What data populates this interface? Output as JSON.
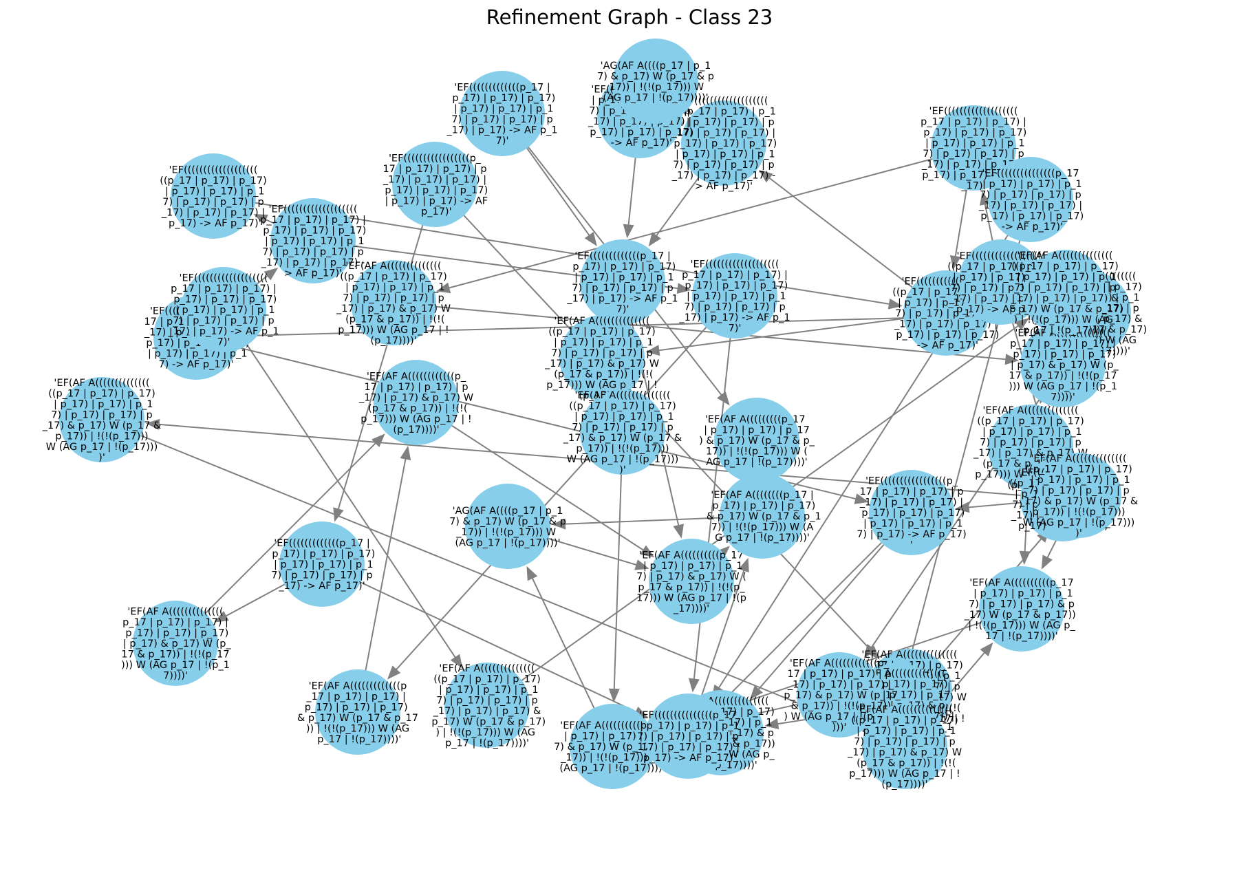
{
  "title": "Refinement Graph - Class 23",
  "nodes": [
    {
      "id": "n1",
      "label": "'EF(((((((((((((((((((((((p_17 | p_17) | p_17) | p_17) | p_17) | p_17) | p_17) | p_17) | p_17) | p_17) | p_17) | p_17) | p_17) | p_17) | p_17) | p_17) | p_17) | p_17) | p_17) -> AF p_17)'"
    },
    {
      "id": "n2",
      "label": "'EF(((((((((((((p_17 | p_17) | p_17) | p_17) | p_17) | p_17) | p_17) | p_17) | p_17) | p_17) | p_17) -> AF p_17)'"
    },
    {
      "id": "n3",
      "label": "'EF(((((((((((((((p_17 | p_17) | p_17) | p_17) | p_17) | p_17) | p_17) | p_17) | p_17) | p_17) | p_17) | p_17) -> AF p_17)'"
    },
    {
      "id": "n4",
      "label": "'EF(AF A((((((((((((((((p_17 | p_17) | p_17) | p_17) | p_17) | p_17) | p_17) | p_17) | p_17) | p_17) & p_17) W (p_17 & p_17)) | !(!(p_17))) W (AG p_17 | !(p_17))))'"
    },
    {
      "id": "n5",
      "label": "'AG(AF A((((p_17 | p_17) & p_17) W (p_17 & p_17)) | !(!(p_17))) W (AG p_17 | !(p_17))))'"
    },
    {
      "id": "n6",
      "label": "'EF(((((((((((((p_17 | p_17) | p_17) | p_17) | p_17) | p_17) | p_17) | p_17) | p_17) | p_17) | p_17) -> AF p_17)'"
    },
    {
      "id": "n7",
      "label": "'EF(AF A((((((((((((((((p_17 | p_17) | p_17) | p_17) | p_17) | p_17) | p_17) | p_17) | p_17) & p_17) W (p_17 & p_17)) | !(!(p_17))) W (AG p_17 | !(p_17))))'"
    },
    {
      "id": "n8",
      "label": "'EF(AF A((((((((((p_17 | p_17) | p_17) | p_17) | p_17) & p_17) W (p_17 & p_17)) | !(!(p_17))) W (AG p_17 | !(p_17))))'"
    },
    {
      "id": "n9",
      "label": "'EF(((((((((((((((((((p_17 | p_17) | p_17) | p_17) | p_17) | p_17) | p_17) | p_17) | p_17) | p_17) | p_17) | p_17) | p_17) | p_17) | p_17) | p_17) -> AF p_17)'"
    },
    {
      "id": "n10",
      "label": "'EF(((((((((((((((p_17 | p_17) | p_17) | p_17) | p_17) | p_17) | p_17) | p_17) | p_17) | p_17) | p_17) | p_17) -> AF p_17)'"
    },
    {
      "id": "n11",
      "label": "'EF(AF A((((((((((p_17 | p_17) | p_17) | p_17) & p_17) W (p_17 & p_17)) | !(!(p_17))) W (AG p_17 | !(p_17))))'"
    },
    {
      "id": "n12",
      "label": "'EF(AF A((((((((((((((((p_17 | p_17) | p_17) | p_17) | p_17) | p_17) | p_17) | p_17) | p_17) | p_17) | p_17) & p_17) W (p_17 & p_17)) | !(!(p_17))) W (AG p_17 | !(p_17))))'"
    },
    {
      "id": "n13",
      "label": "'EF(AF A((((((((((((((((p_17 | p_17) | p_17) | p_17) | p_17) | p_17) | p_17) | p_17) & p_17) W (p_17 & p_17)) | !(!(p_17))) W (AG p_17 | !(p_17))))'"
    },
    {
      "id": "n14",
      "label": "'EF(((((((((((((((((((((p_17 | p_17) | p_17) | p_17) | p_17) | p_17) | p_17) | p_17) | p_17) | p_17) | p_17) | p_17) | p_17) | p_17) -> AF p_17)'"
    },
    {
      "id": "n15",
      "label": "'EF(((((((((((((((((p_17 | p_17) | p_17) | p_17) | p_17) | p_17) | p_17) | p_17) | p_17) | p_17) | p_17) | p_17) | p_17) -> AF p_17)'"
    },
    {
      "id": "n16",
      "label": "'EF(AF A((((((((p_17 | p_17) | p_17) | p_17) & p_17) W (p_17 & p_17)) | !(!(p_17))) W (AG p_17 | !(p_17))))'"
    },
    {
      "id": "n17",
      "label": "'EF(AF A(((((((((p_17 | p_17) | p_17) | p_17) & p_17) W (p_17 & p_17)) | !(!(p_17))) W (AG p_17 | !(p_17))))'"
    },
    {
      "id": "n18",
      "label": "'EF(((((((((((((((((((((p_17 | p_17) | p_17) | p_17) | p_17) | p_17) | p_17) | p_17) | p_17) | p_17) | p_17) | p_17) -> AF p_17)'"
    },
    {
      "id": "n19",
      "label": "'EF(AF A((((((((((((((((p_17 | p_17) | p_17) | p_17) | p_17) | p_17) | p_17) | p_17) | p_17) | p_17) & p_17) W (p_17 & p_17)) | !(!(p_17))) W (AG p_17 | !(p_17))))'"
    },
    {
      "id": "n20",
      "label": "'EF(((((((((((((((((((p_17 | p_17) | p_17) | p_17) | p_17) | p_17) | p_17) | p_17) | p_17) | p_17) | p_17) | p_17) | p_17) -> AF p_17)'"
    },
    {
      "id": "n21",
      "label": "'EF(AF A((((((((((((((p_17 | p_17) | p_17) | p_17) | p_17) | p_17) | p_17) & p_17) W (p_17 & p_17)) | !(!(p_17))) W (AG p_17 | !(p_17))))'"
    },
    {
      "id": "n22",
      "label": "'EF(((((((((((((((p_17 | p_17) | p_17) | p_17) | p_17) | p_17) | p_17) | p_17) | p_17) | p_17) -> AF p_17)'"
    },
    {
      "id": "n23",
      "label": "'EF(AF A((((((((((((((((p_17 | p_17) | p_17) | p_17) | p_17) | p_17) | p_17) | p_17) | p_17) | p_17) & p_17) W (p_17 & p_17)) | !(!(p_17))) W (AG p_17 | !(p_17))))'"
    },
    {
      "id": "n24",
      "label": "'EF(AF A((((((((((p_17 | p_17) | p_17) | p_17) | p_17) | p_17) & p_17) W (p_17 & p_17)) | !(!(p_17))) W (AG p_17 | !(p_17))))'"
    },
    {
      "id": "n25",
      "label": "'EF(((((((((((((((((((((p_17 | p_17) | p_17) | p_17) | p_17) | p_17) | p_17) | p_17) | p_17) | p_17) | p_17) | p_17) -> AF p_17)'"
    },
    {
      "id": "n26",
      "label": "'EF(AF A(((((((((((((((p_17 | p_17) | p_17) | p_17) | p_17) | p_17) | p_17) | p_17) & p_17) W (p_17 & p_17)) | !(!(p_17))) W (AG p_17 | !(p_17))))'"
    },
    {
      "id": "n27",
      "label": "'EF(AF A((((((((((((p_17 | p_17) | p_17) | p_17) | p_17) | p_17) | p_17) & p_17) W (p_17 & p_17)) | !(!(p_17))) W (AG p_17 | !(p_17))))'"
    },
    {
      "id": "n28",
      "label": "'EF(((((((((((((((((((p_17 | p_17) | p_17) | p_17) | p_17) | p_17) | p_17) | p_17) | p_17) | p_17) | p_17) | p_17) | p_17) | p_17) -> AF p_17)'"
    },
    {
      "id": "n29",
      "label": "'EF(AF A((((((((((((((((p_17 | p_17) | p_17) | p_17) | p_17) | p_17) | p_17) | p_17) | p_17) & p_17) W (p_17 & p_17)) | !(!(p_17))) W (AG p_17 | !(p_17))))'"
    },
    {
      "id": "n30",
      "label": "'EF(AF A((((((((((((((((p_17 | p_17) | p_17) | p_17) | p_17) | p_17) | p_17) | p_17) | p_17) | p_17) | p_17) & p_17) W (p_17 & p_17)) | !(!(p_17))) W (AG p_17 | !(p_17))))'"
    },
    {
      "id": "n31",
      "label": "'EF(((((((((((((p_17 | p_17) | p_17) | p_17) | p_17) | p_17) | p_17) | p_17) | p_17) | p_17) -> AF p_17)'"
    },
    {
      "id": "n32",
      "label": "'EF(AF A((((((((((((((((p_17 | p_17) | p_17) | p_17) | p_17) | p_17) | p_17) | p_17) | p_17) | p_17) | p_17) & p_17) W (p_17 & p_17)) | !(!(p_17))) W (AG p_17 | !(p_17))))'"
    },
    {
      "id": "n33",
      "label": "'EF(AF A((((((((((((((((p_17 | p_17) | p_17) | p_17) | p_17) | p_17) | p_17) | p_17) | p_17) | p_17) & p_17) W (p_17 & p_17)) | !(!(p_17))) W (AG p_17 | !(p_17))))'"
    },
    {
      "id": "n34",
      "label": "'EF(((((((((((((((((((((p_17 | p_17) | p_17) | p_17) | p_17) | p_17) | p_17) | p_17) | p_17) | p_17) | p_17) | p_17) -> AF p_17)'"
    },
    {
      "id": "n35",
      "label": "'EF(((((((((((((((((p_17 | p_17) | p_17) | p_17) | p_17) | p_17) | p_17) | p_17) | p_17) | p_17) | p_17) -> AF p_17)'"
    },
    {
      "id": "n36",
      "label": "'EF(AF A((((((((((((((((p_17 | p_17) | p_17) | p_17) | p_17) | p_17) | p_17) | p_17) | p_17) | p_17) & p_17) W (p_17 & p_17)) | !(!(p_17))) W (AG p_17 | !(p_17))))'"
    },
    {
      "id": "n37",
      "label": "'EF(AF A((((((((((((p_17 | p_17) | p_17) | p_17) | p_17) & p_17) W (p_17 & p_17)) | !(!(p_17))) W (AG p_17 | !(p_17))))'"
    },
    {
      "id": "n38",
      "label": "'EF(AF A((((((((((((((p_17 | p_17) | p_17) | p_17) | p_17) | p_17) | p_17) & p_17) W (p_17 & p_17)) | !(!(p_17))) W (AG p_17 | !(p_17))))'"
    },
    {
      "id": "n39",
      "label": "'AG(AF A((((p_17 | p_17) & p_17) W (p_17 & p_17)) | !(!(p_17))) W (AG p_17 | !(p_17))))'"
    },
    {
      "id": "n40",
      "label": "'EF(((((((((((((((((p_17 | p_17) | p_17) | p_17) | p_17) | p_17) | p_17) | p_17) | p_17) | p_17) | p_17) | p_17) -> AF p_17)'"
    },
    {
      "id": "n41",
      "label": "'EF(AF A(((((((((((((p_17 | p_17) | p_17) | p_17) | p_17) | p_17) & p_17) W (p_17 & p_17)) | !(!(p_17))) W (AG p_17 | !(p_17))))'"
    },
    {
      "id": "n42",
      "label": "'EF(((((((((((((((((((p_17 | p_17) | p_17) | p_17) | p_17) | p_17) | p_17) | p_17) | p_17) | p_17) | p_17) | p_17) | p_17) -> AF p_17)'"
    },
    {
      "id": "n43",
      "label": "'EF(AF A((((((((((((((((p_17 | p_17) | p_17) | p_17) | p_17) | p_17) | p_17) | p_17) | p_17) & p_17) W (p_17 & p_17)) | !(!(p_17))) W (AG p_17 | !(p_17))))'"
    }
  ],
  "edges": [
    [
      "n1",
      "n2"
    ],
    [
      "n3",
      "n2"
    ],
    [
      "n4",
      "n7"
    ],
    [
      "n5",
      "n1"
    ],
    [
      "n6",
      "n2"
    ],
    [
      "n7",
      "n11"
    ],
    [
      "n8",
      "n16"
    ],
    [
      "n9",
      "n14"
    ],
    [
      "n10",
      "n22"
    ],
    [
      "n12",
      "n19"
    ],
    [
      "n13",
      "n11"
    ],
    [
      "n14",
      "n1"
    ],
    [
      "n15",
      "n22"
    ],
    [
      "n17",
      "n16"
    ],
    [
      "n18",
      "n25"
    ],
    [
      "n19",
      "n24"
    ],
    [
      "n20",
      "n22"
    ],
    [
      "n21",
      "n27"
    ],
    [
      "n23",
      "n29"
    ],
    [
      "n24",
      "n11"
    ],
    [
      "n25",
      "n15"
    ],
    [
      "n26",
      "n13"
    ],
    [
      "n27",
      "n11"
    ],
    [
      "n28",
      "n20"
    ],
    [
      "n29",
      "n24"
    ],
    [
      "n30",
      "n19"
    ],
    [
      "n31",
      "n22"
    ],
    [
      "n32",
      "n30"
    ],
    [
      "n33",
      "n24"
    ],
    [
      "n34",
      "n14"
    ],
    [
      "n35",
      "n31"
    ],
    [
      "n36",
      "n21"
    ],
    [
      "n37",
      "n8"
    ],
    [
      "n38",
      "n37"
    ],
    [
      "n39",
      "n8"
    ],
    [
      "n40",
      "n15"
    ],
    [
      "n41",
      "n37"
    ],
    [
      "n42",
      "n28"
    ],
    [
      "n43",
      "n33"
    ],
    [
      "n2",
      "n8"
    ],
    [
      "n22",
      "n16"
    ],
    [
      "n11",
      "n39"
    ],
    [
      "n6",
      "n17"
    ],
    [
      "n3",
      "n5"
    ],
    [
      "n16",
      "n39"
    ],
    [
      "n18",
      "n9"
    ],
    [
      "n10",
      "n26"
    ],
    [
      "n28",
      "n34"
    ],
    [
      "n40",
      "n12"
    ],
    [
      "n42",
      "n32"
    ],
    [
      "n35",
      "n23"
    ],
    [
      "n31",
      "n38"
    ],
    [
      "n20",
      "n41"
    ],
    [
      "n14",
      "n4"
    ],
    [
      "n9",
      "n36"
    ],
    [
      "n25",
      "n43"
    ],
    [
      "n15",
      "n13"
    ]
  ]
}
